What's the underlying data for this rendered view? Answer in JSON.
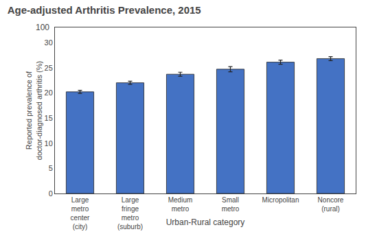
{
  "chart_data": {
    "type": "bar",
    "title": "Age-adjusted Arthritis Prevalence, 2015",
    "categories": [
      "Large\nmetro\ncenter\n(city)",
      "Large\nfringe\nmetro\n(suburb)",
      "Medium\nmetro",
      "Small\nmetro",
      "Micropolitan",
      "Noncore\n(rural)"
    ],
    "values": [
      20.2,
      22.0,
      23.7,
      24.7,
      26.1,
      26.8
    ],
    "errors": [
      0.3,
      0.3,
      0.4,
      0.5,
      0.4,
      0.4
    ],
    "color": "#4472C4",
    "xlabel": "Urban-Rural category",
    "ylabel": "Reported prevalence of\ndoctor-diagnosed arthritis (%)",
    "ylim": [
      0,
      33
    ],
    "yticks": [
      0,
      5,
      10,
      15,
      20,
      25,
      30
    ],
    "annotations": [
      "100"
    ],
    "grid": false
  }
}
